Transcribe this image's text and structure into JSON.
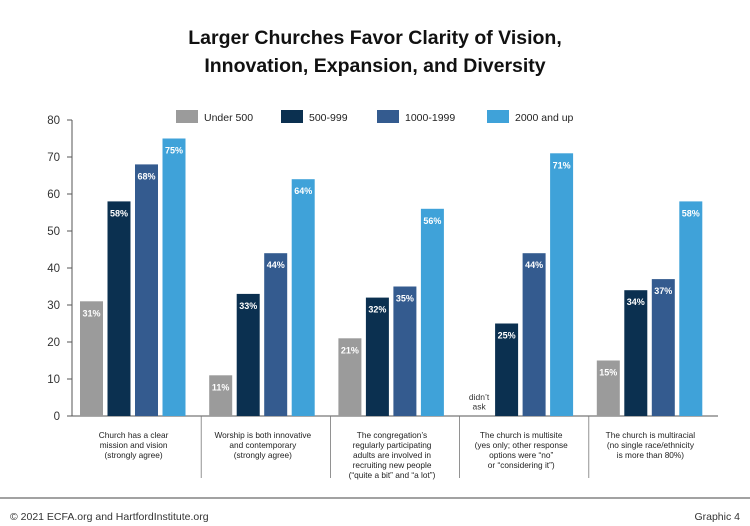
{
  "chart_data": {
    "type": "bar",
    "title": [
      "Larger Churches Favor Clarity of Vision,",
      "Innovation, Expansion, and Diversity"
    ],
    "categories": [
      [
        "Church has a clear",
        "mission and vision",
        "(strongly agree)"
      ],
      [
        "Worship is both innovative",
        "and contemporary",
        "(strongly agree)"
      ],
      [
        "The congregation’s",
        "regularly participating",
        "adults are involved in",
        "recruiting new people",
        "(“quite a bit” and “a lot”)"
      ],
      [
        "The church is multisite",
        "(yes only; other response",
        "options were “no”",
        "or “considering it”)"
      ],
      [
        "The church is multiracial",
        "(no single race/ethnicity",
        "is more than 80%)"
      ]
    ],
    "series": [
      {
        "name": "Under 500",
        "color": "#9b9b9b",
        "values": [
          31,
          11,
          21,
          null,
          15
        ],
        "labels": [
          "31%",
          "11%",
          "21%",
          "",
          "15%"
        ]
      },
      {
        "name": "500-999",
        "color": "#0b3050",
        "values": [
          58,
          33,
          32,
          25,
          34
        ],
        "labels": [
          "58%",
          "33%",
          "32%",
          "25%",
          "34%"
        ]
      },
      {
        "name": "1000-1999",
        "color": "#345b8f",
        "values": [
          68,
          44,
          35,
          44,
          37
        ],
        "labels": [
          "68%",
          "44%",
          "35%",
          "44%",
          "37%"
        ]
      },
      {
        "name": "2000 and up",
        "color": "#3fa2d9",
        "values": [
          75,
          64,
          56,
          71,
          58
        ],
        "labels": [
          "75%",
          "64%",
          "56%",
          "71%",
          "58%"
        ]
      }
    ],
    "missing_note": {
      "category_index": 3,
      "series_index": 0,
      "lines": [
        "didn’t",
        "ask"
      ]
    },
    "ylim": [
      0,
      80
    ],
    "yticks": [
      0,
      10,
      20,
      30,
      40,
      50,
      60,
      70,
      80
    ],
    "legend_position": "top-center",
    "grid": false
  },
  "footer": {
    "left": "© 2021 ECFA.org and HartfordInstitute.org",
    "right": "Graphic 4"
  }
}
